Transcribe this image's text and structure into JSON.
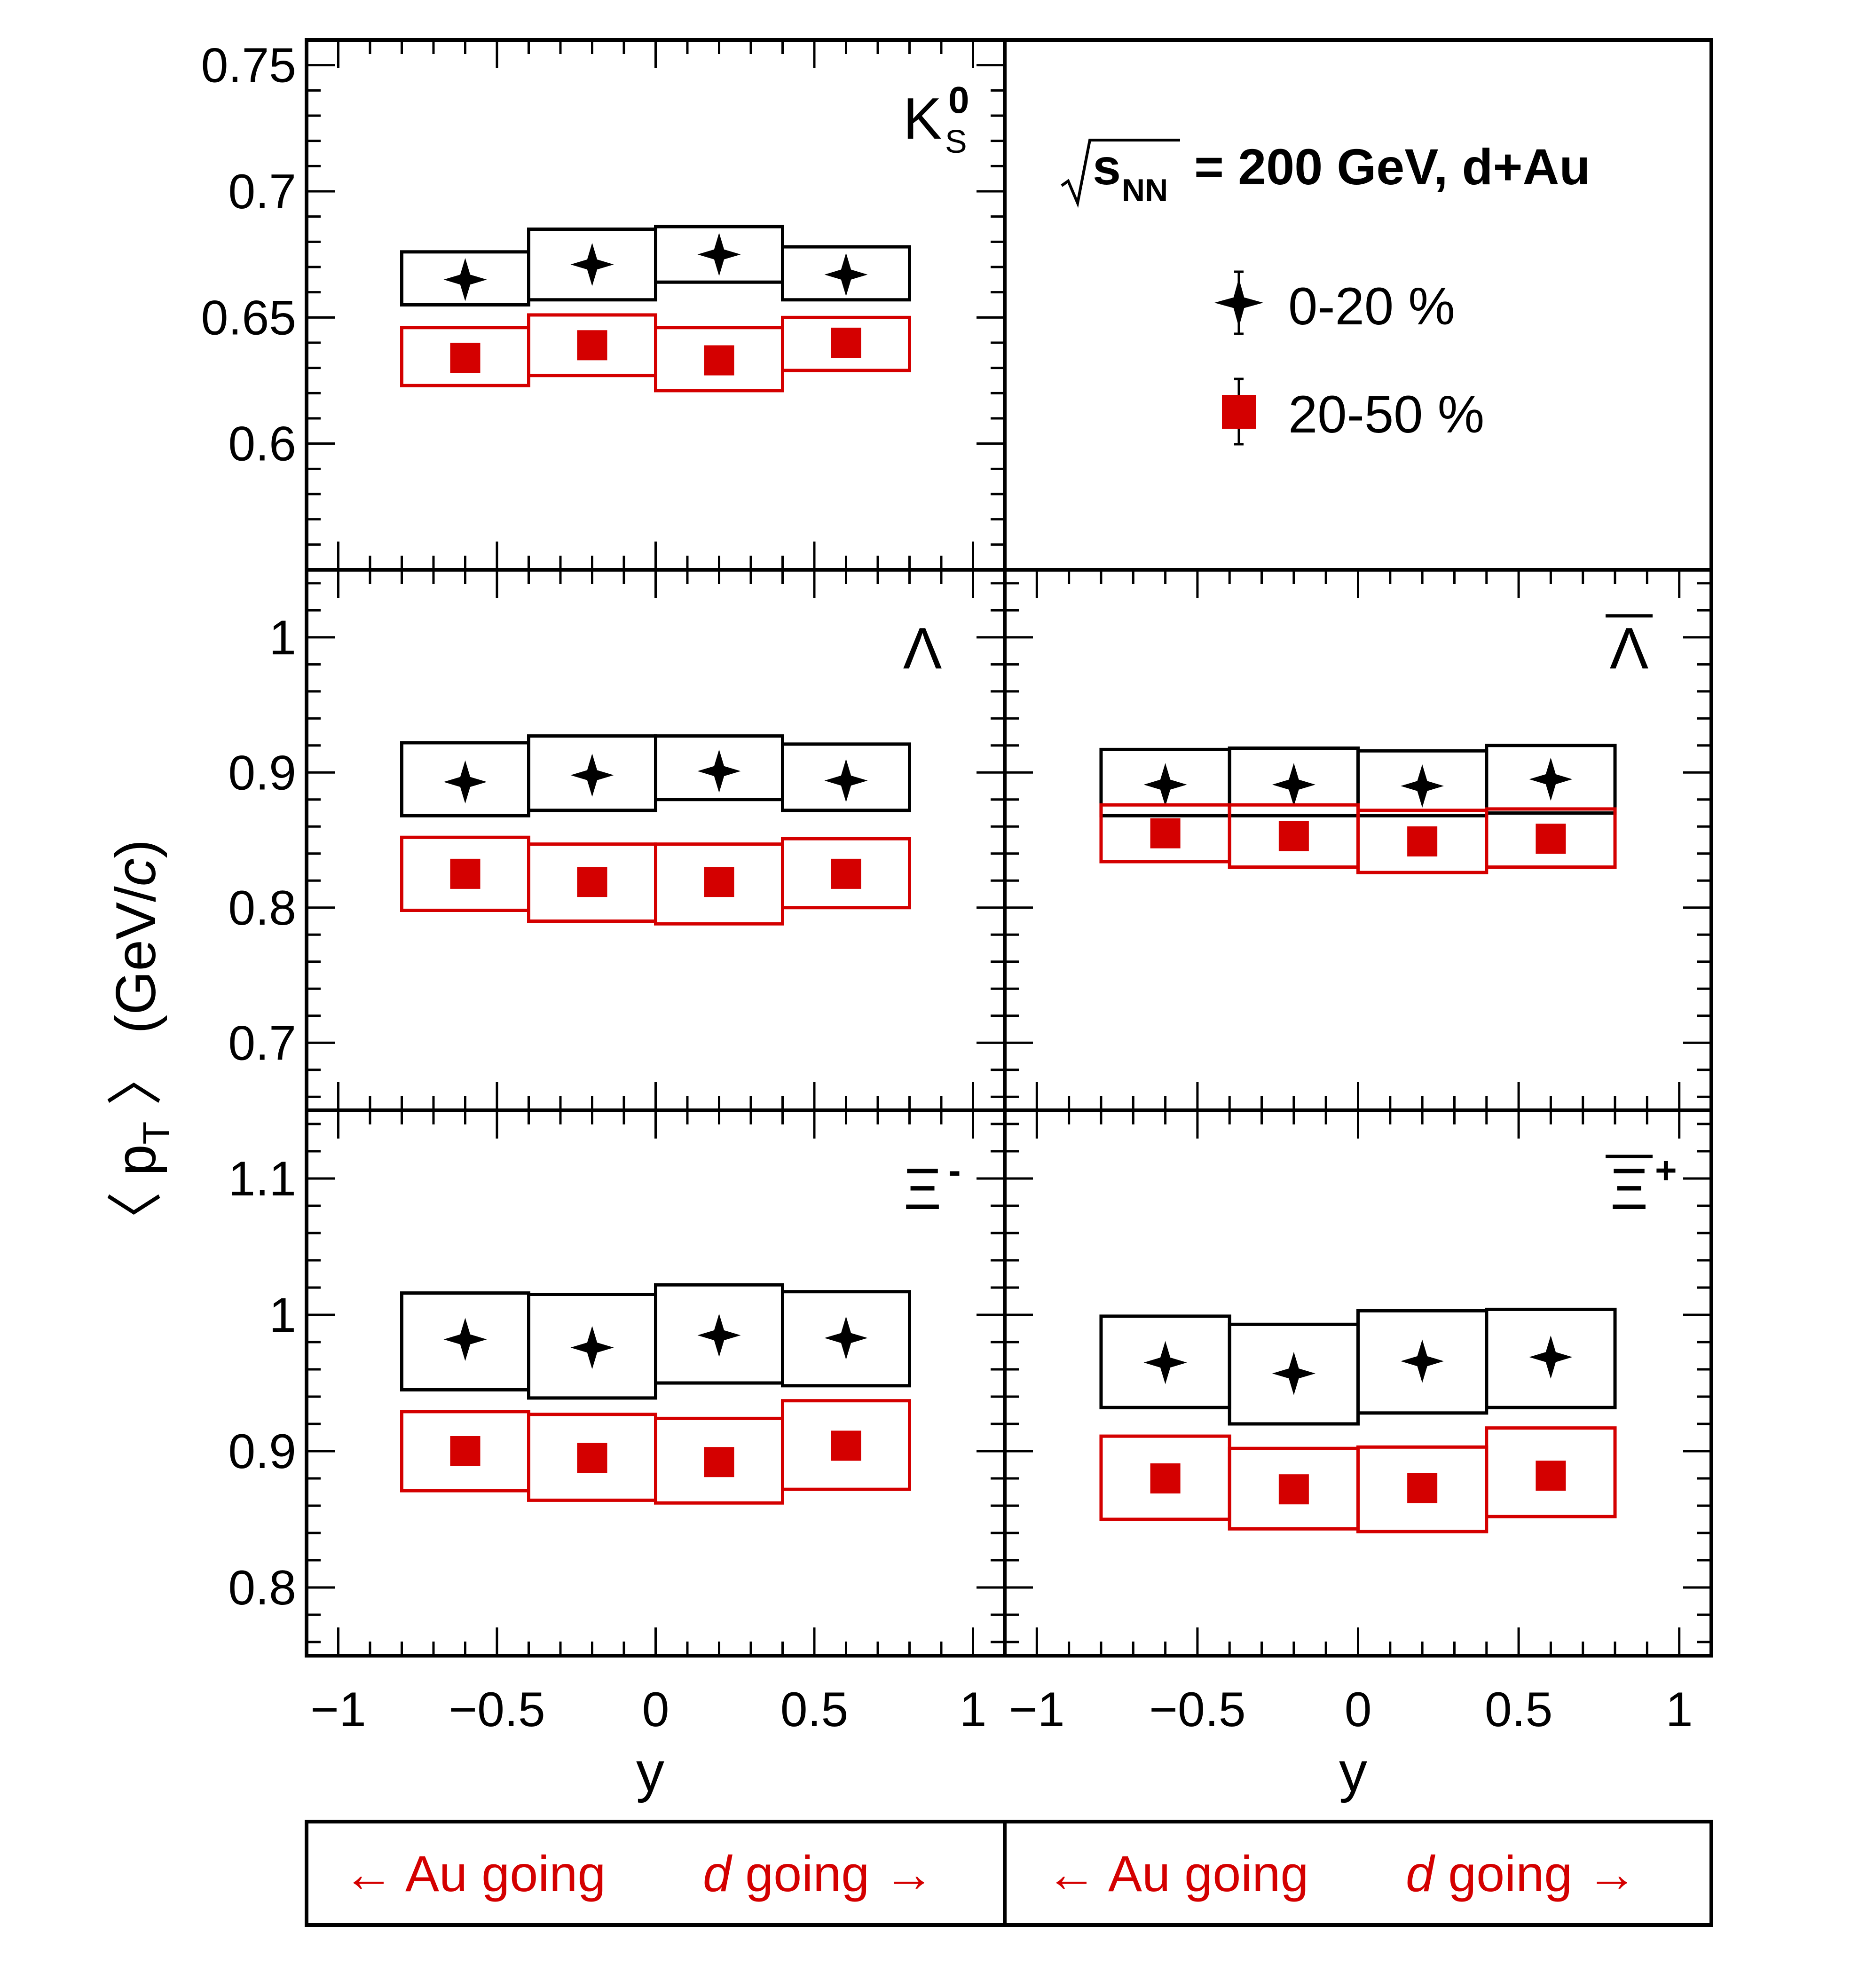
{
  "chart_data": {
    "type": "scatter",
    "energy_label": {
      "sqrt_sym": "√",
      "s": "s",
      "nn": "NN",
      "rest": "= 200 GeV, d+Au"
    },
    "y_axis_label": {
      "open": "〈 p",
      "sub": "T",
      "close": " 〉 (GeV/",
      "unit_c": "c",
      "end": ")"
    },
    "x_axis_label": "y",
    "xlim": [
      -1.1,
      1.1
    ],
    "x_ticks": [
      -1,
      -0.5,
      0,
      0.5,
      1
    ],
    "x_tick_labels": [
      "−1",
      "−0.5",
      "0",
      "0.5",
      "1"
    ],
    "legend": [
      {
        "label": "0-20 %",
        "marker": "star",
        "color": "#000000"
      },
      {
        "label": "20-50 %",
        "marker": "square",
        "color": "#d40000"
      }
    ],
    "direction_labels": {
      "au_arrow": "← Au going",
      "d_italic": "d",
      "d_rest": " going →"
    },
    "x": [
      -0.6,
      -0.2,
      0.2,
      0.6
    ],
    "panels": [
      {
        "label": {
          "main": "K",
          "sup": "0",
          "sub": "S"
        },
        "ylim": [
          0.55,
          0.76
        ],
        "y_ticks": [
          0.6,
          0.65,
          0.7,
          0.75
        ],
        "y_tick_labels": [
          "0.6",
          "0.65",
          "0.7",
          "0.75"
        ],
        "series": [
          {
            "centrality": "0-20 %",
            "values": [
              0.665,
              0.671,
              0.675,
              0.667
            ],
            "syst_low": [
              0.655,
              0.657,
              0.664,
              0.657
            ],
            "syst_high": [
              0.676,
              0.685,
              0.686,
              0.678
            ]
          },
          {
            "centrality": "20-50 %",
            "values": [
              0.634,
              0.639,
              0.633,
              0.64
            ],
            "syst_low": [
              0.623,
              0.627,
              0.621,
              0.629
            ],
            "syst_high": [
              0.646,
              0.651,
              0.646,
              0.65
            ]
          }
        ]
      },
      {
        "label": {
          "main": "Λ"
        },
        "ylim": [
          0.65,
          1.05
        ],
        "y_ticks": [
          0.7,
          0.8,
          0.9,
          1.0
        ],
        "y_tick_labels": [
          "0.7",
          "0.8",
          "0.9",
          "1"
        ],
        "series": [
          {
            "centrality": "0-20 %",
            "values": [
              0.893,
              0.898,
              0.901,
              0.894
            ],
            "syst_low": [
              0.868,
              0.872,
              0.88,
              0.872
            ],
            "syst_high": [
              0.922,
              0.927,
              0.927,
              0.921
            ]
          },
          {
            "centrality": "20-50 %",
            "values": [
              0.825,
              0.819,
              0.819,
              0.825
            ],
            "syst_low": [
              0.798,
              0.79,
              0.788,
              0.8
            ],
            "syst_high": [
              0.852,
              0.847,
              0.847,
              0.851
            ]
          }
        ]
      },
      {
        "label": {
          "main": "Λ",
          "overline": true
        },
        "ylim": [
          0.65,
          1.05
        ],
        "y_ticks": [
          0.7,
          0.8,
          0.9,
          1.0
        ],
        "y_tick_labels": [
          "0.7",
          "0.8",
          "0.9",
          "1"
        ],
        "series": [
          {
            "centrality": "0-20 %",
            "values": [
              0.891,
              0.891,
              0.89,
              0.895
            ],
            "syst_low": [
              0.868,
              0.868,
              0.868,
              0.87
            ],
            "syst_high": [
              0.917,
              0.918,
              0.916,
              0.92
            ]
          },
          {
            "centrality": "20-50 %",
            "values": [
              0.855,
              0.853,
              0.849,
              0.851
            ],
            "syst_low": [
              0.834,
              0.83,
              0.826,
              0.83
            ],
            "syst_high": [
              0.876,
              0.876,
              0.872,
              0.873
            ]
          }
        ]
      },
      {
        "label": {
          "main": "Ξ",
          "sup": "-"
        },
        "ylim": [
          0.75,
          1.15
        ],
        "y_ticks": [
          0.8,
          0.9,
          1.0,
          1.1
        ],
        "y_tick_labels": [
          "0.8",
          "0.9",
          "1",
          "1.1"
        ],
        "series": [
          {
            "centrality": "0-20 %",
            "values": [
              0.982,
              0.976,
              0.985,
              0.983
            ],
            "syst_low": [
              0.945,
              0.939,
              0.95,
              0.948
            ],
            "syst_high": [
              1.016,
              1.015,
              1.022,
              1.017
            ]
          },
          {
            "centrality": "20-50 %",
            "values": [
              0.9,
              0.895,
              0.892,
              0.904
            ],
            "syst_low": [
              0.871,
              0.864,
              0.862,
              0.872
            ],
            "syst_high": [
              0.929,
              0.927,
              0.924,
              0.937
            ]
          }
        ]
      },
      {
        "label": {
          "main": "Ξ",
          "sup": "+",
          "overline": true
        },
        "ylim": [
          0.75,
          1.15
        ],
        "y_ticks": [
          0.8,
          0.9,
          1.0,
          1.1
        ],
        "y_tick_labels": [
          "0.8",
          "0.9",
          "1",
          "1.1"
        ],
        "series": [
          {
            "centrality": "0-20 %",
            "values": [
              0.965,
              0.957,
              0.966,
              0.969
            ],
            "syst_low": [
              0.932,
              0.92,
              0.928,
              0.932
            ],
            "syst_high": [
              0.999,
              0.993,
              1.003,
              1.004
            ]
          },
          {
            "centrality": "20-50 %",
            "values": [
              0.88,
              0.872,
              0.873,
              0.882
            ],
            "syst_low": [
              0.85,
              0.843,
              0.841,
              0.852
            ],
            "syst_high": [
              0.911,
              0.902,
              0.903,
              0.917
            ]
          }
        ]
      }
    ],
    "grid": false,
    "legend_position": "top-right"
  }
}
